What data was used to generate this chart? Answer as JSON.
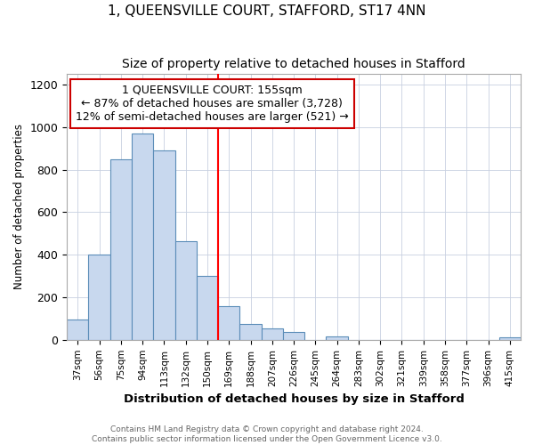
{
  "title": "1, QUEENSVILLE COURT, STAFFORD, ST17 4NN",
  "subtitle": "Size of property relative to detached houses in Stafford",
  "xlabel": "Distribution of detached houses by size in Stafford",
  "ylabel": "Number of detached properties",
  "categories": [
    "37sqm",
    "56sqm",
    "75sqm",
    "94sqm",
    "113sqm",
    "132sqm",
    "150sqm",
    "169sqm",
    "188sqm",
    "207sqm",
    "226sqm",
    "245sqm",
    "264sqm",
    "283sqm",
    "302sqm",
    "321sqm",
    "339sqm",
    "358sqm",
    "377sqm",
    "396sqm",
    "415sqm"
  ],
  "values": [
    95,
    400,
    850,
    970,
    890,
    465,
    300,
    160,
    75,
    53,
    35,
    0,
    15,
    0,
    0,
    0,
    0,
    0,
    0,
    0,
    10
  ],
  "bar_color": "#c8d8ee",
  "bar_edge_color": "#5b8db8",
  "red_line_x": 6.5,
  "annotation_title": "1 QUEENSVILLE COURT: 155sqm",
  "annotation_line1": "← 87% of detached houses are smaller (3,728)",
  "annotation_line2": "12% of semi-detached houses are larger (521) →",
  "ylim": [
    0,
    1250
  ],
  "yticks": [
    0,
    200,
    400,
    600,
    800,
    1000,
    1200
  ],
  "footer_line1": "Contains HM Land Registry data © Crown copyright and database right 2024.",
  "footer_line2": "Contains public sector information licensed under the Open Government Licence v3.0.",
  "background_color": "#ffffff",
  "plot_background": "#ffffff",
  "title_fontsize": 11,
  "subtitle_fontsize": 10,
  "annotation_box_color": "#ffffff",
  "annotation_border_color": "#cc0000",
  "grid_color": "#c8d0e0"
}
